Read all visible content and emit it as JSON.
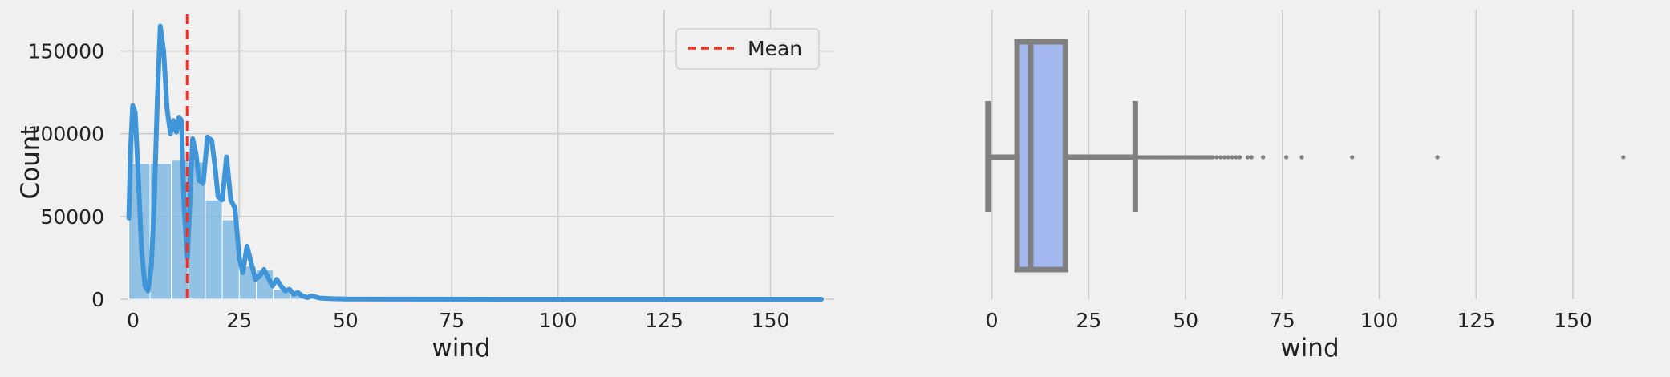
{
  "figure": {
    "background": "#f0f0f0",
    "grid_color": "#cbcbcb",
    "tick_color": "#222222"
  },
  "chart_data": [
    {
      "type": "histogram",
      "xlabel": "wind",
      "ylabel": "Count",
      "xlim": [
        -3,
        165
      ],
      "ylim": [
        0,
        175000
      ],
      "xticks": [
        0,
        25,
        50,
        75,
        100,
        125,
        150
      ],
      "yticks": [
        0,
        50000,
        100000,
        150000
      ],
      "grid": true,
      "bar_color": "#80b9e0",
      "kde_color": "#3f95d8",
      "legend": {
        "position": "top-right",
        "entries": [
          {
            "label": "Mean",
            "color": "#e8352b",
            "style": "dashed"
          }
        ]
      },
      "mean": 12.8,
      "bins": [
        {
          "x0": -1.0,
          "x1": 4.0,
          "count": 82000
        },
        {
          "x0": 4.0,
          "x1": 9.0,
          "count": 82000
        },
        {
          "x0": 9.0,
          "x1": 13.0,
          "count": 84000
        },
        {
          "x0": 13.0,
          "x1": 17.0,
          "count": 83000
        },
        {
          "x0": 17.0,
          "x1": 21.0,
          "count": 60000
        },
        {
          "x0": 21.0,
          "x1": 25.0,
          "count": 48000
        },
        {
          "x0": 25.0,
          "x1": 29.0,
          "count": 20000
        },
        {
          "x0": 29.0,
          "x1": 33.0,
          "count": 18000
        },
        {
          "x0": 33.0,
          "x1": 37.0,
          "count": 6000
        },
        {
          "x0": 37.0,
          "x1": 41.0,
          "count": 3000
        },
        {
          "x0": 41.0,
          "x1": 45.0,
          "count": 1500
        },
        {
          "x0": 45.0,
          "x1": 50.0,
          "count": 700
        },
        {
          "x0": 50.0,
          "x1": 60.0,
          "count": 300
        },
        {
          "x0": 60.0,
          "x1": 163.0,
          "count": 100
        }
      ],
      "kde": [
        [
          -1.0,
          49000
        ],
        [
          -0.6,
          90000
        ],
        [
          -0.1,
          117000
        ],
        [
          0.5,
          113000
        ],
        [
          1.2,
          75000
        ],
        [
          2.0,
          30000
        ],
        [
          2.8,
          8000
        ],
        [
          3.5,
          5000
        ],
        [
          4.3,
          20000
        ],
        [
          5.0,
          60000
        ],
        [
          5.7,
          120000
        ],
        [
          6.4,
          165000
        ],
        [
          7.2,
          150000
        ],
        [
          8.0,
          115000
        ],
        [
          8.8,
          100000
        ],
        [
          9.5,
          108000
        ],
        [
          10.2,
          101000
        ],
        [
          10.8,
          110000
        ],
        [
          11.4,
          108000
        ],
        [
          12.0,
          55000
        ],
        [
          12.8,
          25000
        ],
        [
          13.4,
          60000
        ],
        [
          14.0,
          97000
        ],
        [
          14.8,
          88000
        ],
        [
          15.5,
          72000
        ],
        [
          16.5,
          70000
        ],
        [
          17.5,
          98000
        ],
        [
          18.5,
          96000
        ],
        [
          19.3,
          80000
        ],
        [
          20.0,
          62000
        ],
        [
          21.0,
          60000
        ],
        [
          22.0,
          86000
        ],
        [
          23.0,
          60000
        ],
        [
          24.0,
          55000
        ],
        [
          25.0,
          25000
        ],
        [
          25.8,
          16000
        ],
        [
          26.8,
          32000
        ],
        [
          27.8,
          22000
        ],
        [
          28.8,
          12000
        ],
        [
          29.8,
          14000
        ],
        [
          30.8,
          18000
        ],
        [
          31.8,
          13000
        ],
        [
          32.8,
          8000
        ],
        [
          33.8,
          12000
        ],
        [
          34.8,
          8000
        ],
        [
          35.8,
          5000
        ],
        [
          36.8,
          6000
        ],
        [
          37.8,
          3000
        ],
        [
          38.8,
          4000
        ],
        [
          39.8,
          2000
        ],
        [
          41.0,
          1000
        ],
        [
          42.0,
          2000
        ],
        [
          44.0,
          700
        ],
        [
          47.0,
          300
        ],
        [
          50.0,
          120
        ],
        [
          60.0,
          40
        ],
        [
          100.0,
          0
        ],
        [
          162.0,
          0
        ]
      ]
    },
    {
      "type": "box",
      "xlabel": "wind",
      "xlim": [
        -8,
        168
      ],
      "xticks": [
        0,
        25,
        50,
        75,
        100,
        125,
        150
      ],
      "grid": true,
      "box_color": "#a2b8ee",
      "line_color": "#808080",
      "min": -1,
      "q1": 6.5,
      "median": 10,
      "q3": 19,
      "whisker_low": -1,
      "whisker_high": 37,
      "outliers": [
        38,
        38.5,
        39,
        39.5,
        40,
        40.5,
        41,
        41.5,
        42,
        42.5,
        43,
        43.5,
        44,
        44.5,
        45,
        45.5,
        46,
        46.5,
        47,
        47.5,
        48,
        48.5,
        49,
        49.5,
        50,
        50.5,
        51,
        51.5,
        52,
        52.5,
        53,
        53.5,
        54,
        54.5,
        55,
        55.5,
        56,
        56.5,
        57,
        58,
        59,
        60,
        61,
        62,
        63,
        64,
        66,
        67,
        70,
        76,
        80,
        93,
        115,
        163
      ]
    }
  ]
}
